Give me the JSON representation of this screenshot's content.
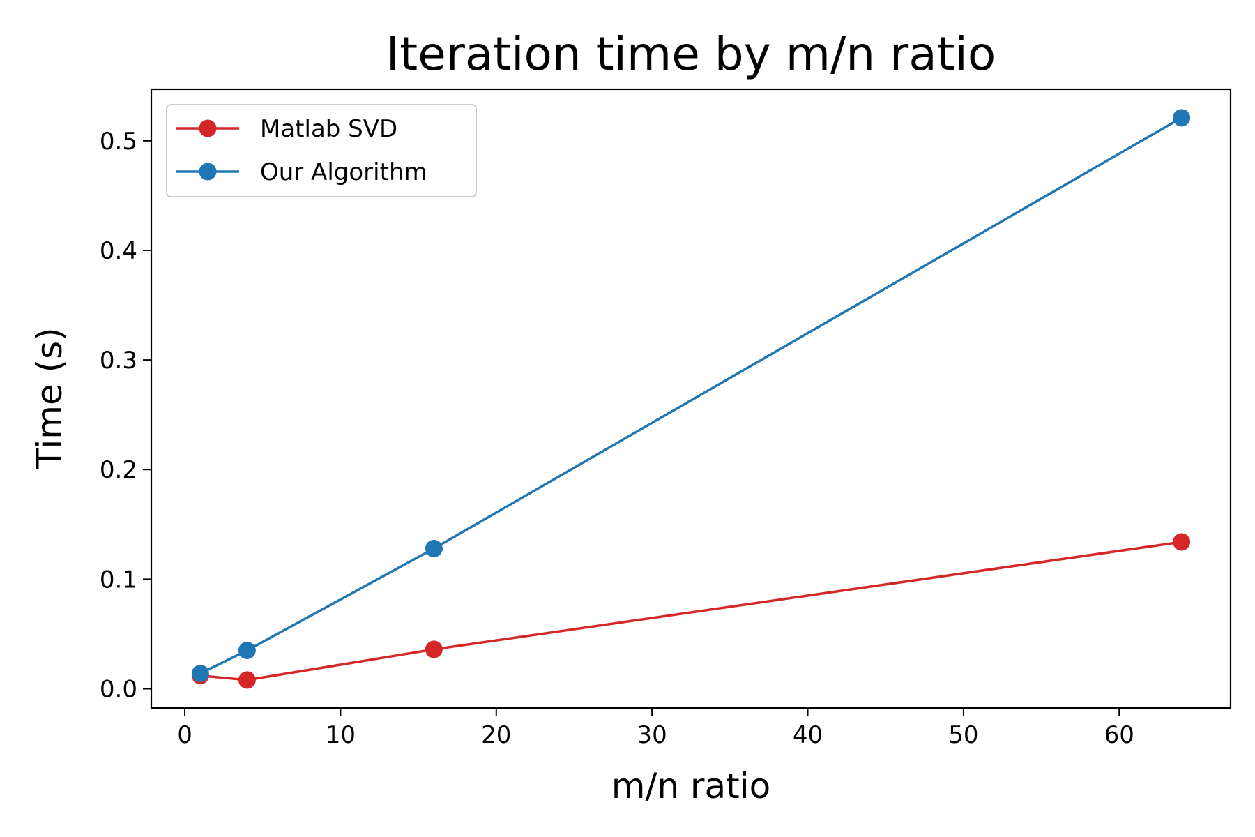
{
  "chart_data": {
    "type": "line",
    "title": "Iteration time by m/n ratio",
    "xlabel": "m/n ratio",
    "ylabel": "Time (s)",
    "xlim": [
      -2.15,
      67.15
    ],
    "ylim": [
      -0.0175,
      0.547
    ],
    "xticks": [
      0,
      10,
      20,
      30,
      40,
      50,
      60
    ],
    "xtick_labels": [
      "0",
      "10",
      "20",
      "30",
      "40",
      "50",
      "60"
    ],
    "yticks": [
      0.0,
      0.1,
      0.2,
      0.3,
      0.4,
      0.5
    ],
    "ytick_labels": [
      "0.0",
      "0.1",
      "0.2",
      "0.3",
      "0.4",
      "0.5"
    ],
    "grid": false,
    "legend_position": "top-left",
    "x": [
      1,
      4,
      16,
      64
    ],
    "series": [
      {
        "name": "Matlab SVD",
        "color": "#d62728",
        "marker": "circle",
        "values": [
          0.012,
          0.008,
          0.036,
          0.134
        ]
      },
      {
        "name": "Our Algorithm",
        "color": "#1f77b4",
        "marker": "circle",
        "values": [
          0.014,
          0.035,
          0.128,
          0.521
        ]
      }
    ]
  }
}
